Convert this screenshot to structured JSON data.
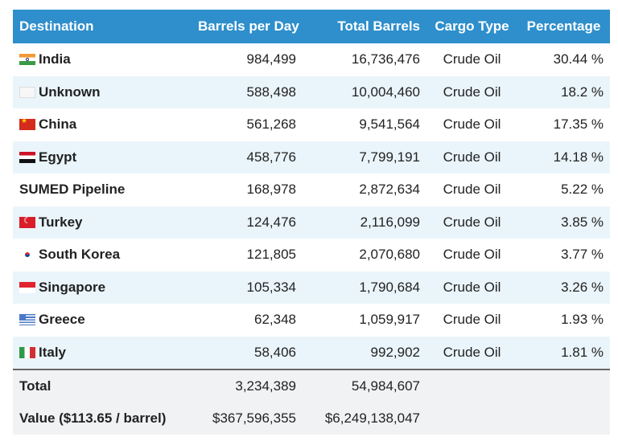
{
  "headers": {
    "destination": "Destination",
    "barrels_per_day": "Barrels per Day",
    "total_barrels": "Total Barrels",
    "cargo_type": "Cargo Type",
    "percentage": "Percentage"
  },
  "rows": [
    {
      "destination": "India",
      "flag": "india-flag-icon",
      "barrels_per_day": "984,499",
      "total_barrels": "16,736,476",
      "cargo_type": "Crude Oil",
      "percentage": "30.44 %"
    },
    {
      "destination": "Unknown",
      "flag": "unknown-flag-icon",
      "barrels_per_day": "588,498",
      "total_barrels": "10,004,460",
      "cargo_type": "Crude Oil",
      "percentage": "18.2 %"
    },
    {
      "destination": "China",
      "flag": "china-flag-icon",
      "barrels_per_day": "561,268",
      "total_barrels": "9,541,564",
      "cargo_type": "Crude Oil",
      "percentage": "17.35 %"
    },
    {
      "destination": "Egypt",
      "flag": "egypt-flag-icon",
      "barrels_per_day": "458,776",
      "total_barrels": "7,799,191",
      "cargo_type": "Crude Oil",
      "percentage": "14.18 %"
    },
    {
      "destination": "SUMED Pipeline",
      "flag": "",
      "barrels_per_day": "168,978",
      "total_barrels": "2,872,634",
      "cargo_type": "Crude Oil",
      "percentage": "5.22 %"
    },
    {
      "destination": "Turkey",
      "flag": "turkey-flag-icon",
      "barrels_per_day": "124,476",
      "total_barrels": "2,116,099",
      "cargo_type": "Crude Oil",
      "percentage": "3.85 %"
    },
    {
      "destination": "South Korea",
      "flag": "south-korea-flag-icon",
      "barrels_per_day": "121,805",
      "total_barrels": "2,070,680",
      "cargo_type": "Crude Oil",
      "percentage": "3.77 %"
    },
    {
      "destination": "Singapore",
      "flag": "singapore-flag-icon",
      "barrels_per_day": "105,334",
      "total_barrels": "1,790,684",
      "cargo_type": "Crude Oil",
      "percentage": "3.26 %"
    },
    {
      "destination": "Greece",
      "flag": "greece-flag-icon",
      "barrels_per_day": "62,348",
      "total_barrels": "1,059,917",
      "cargo_type": "Crude Oil",
      "percentage": "1.93 %"
    },
    {
      "destination": "Italy",
      "flag": "italy-flag-icon",
      "barrels_per_day": "58,406",
      "total_barrels": "992,902",
      "cargo_type": "Crude Oil",
      "percentage": "1.81 %"
    }
  ],
  "footer": {
    "total_label": "Total",
    "total_barrels_per_day": "3,234,389",
    "total_barrels": "54,984,607",
    "value_label": "Value ($113.65 / barrel)",
    "value_per_day": "$367,596,355",
    "value_total": "$6,249,138,047"
  },
  "colors": {
    "header_bg": "#2e8fcc",
    "stripe_bg": "#eaf5fb",
    "footer_bg": "#f1f2f4"
  }
}
